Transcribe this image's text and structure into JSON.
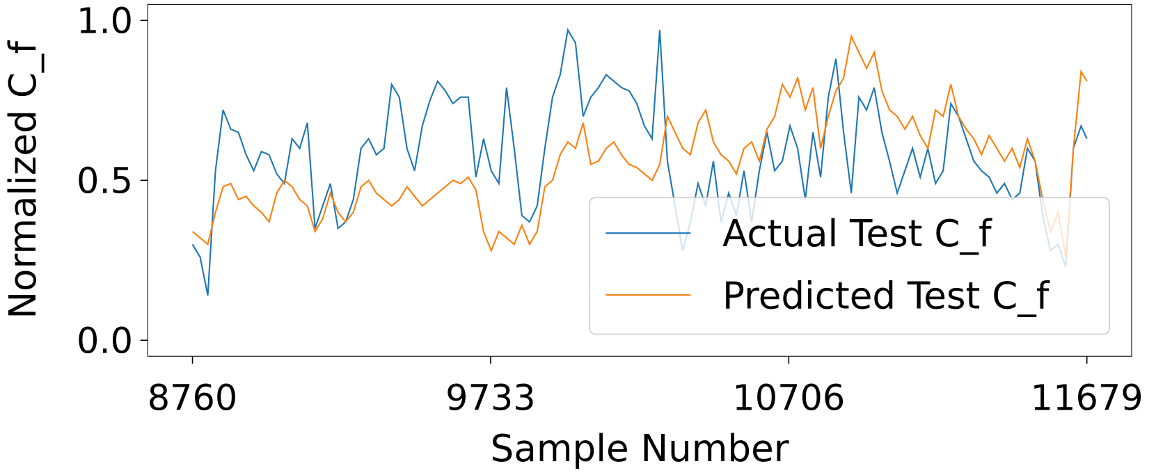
{
  "chart_data": {
    "type": "line",
    "xlabel": "Sample Number",
    "ylabel": "Normalized C_f",
    "x": [
      8760,
      8785,
      8810,
      8835,
      8860,
      8885,
      8910,
      8935,
      8960,
      8985,
      9010,
      9035,
      9060,
      9085,
      9110,
      9135,
      9160,
      9185,
      9210,
      9235,
      9260,
      9285,
      9310,
      9335,
      9360,
      9385,
      9410,
      9435,
      9460,
      9485,
      9510,
      9535,
      9560,
      9585,
      9610,
      9635,
      9660,
      9685,
      9710,
      9735,
      9760,
      9785,
      9810,
      9835,
      9860,
      9885,
      9910,
      9935,
      9960,
      9985,
      10010,
      10035,
      10060,
      10085,
      10110,
      10135,
      10160,
      10185,
      10210,
      10235,
      10260,
      10285,
      10310,
      10335,
      10360,
      10385,
      10410,
      10435,
      10460,
      10485,
      10510,
      10535,
      10560,
      10585,
      10610,
      10635,
      10660,
      10685,
      10710,
      10735,
      10760,
      10785,
      10810,
      10835,
      10860,
      10885,
      10910,
      10935,
      10960,
      10985,
      11010,
      11035,
      11060,
      11085,
      11110,
      11135,
      11160,
      11185,
      11210,
      11235,
      11260,
      11285,
      11310,
      11335,
      11360,
      11385,
      11410,
      11435,
      11460,
      11485,
      11510,
      11535,
      11560,
      11585,
      11610,
      11635,
      11660,
      11679
    ],
    "series": [
      {
        "name": "Actual Test C_f",
        "color": "#1f77b4",
        "values": [
          0.3,
          0.26,
          0.14,
          0.53,
          0.72,
          0.66,
          0.65,
          0.58,
          0.53,
          0.59,
          0.58,
          0.52,
          0.49,
          0.63,
          0.6,
          0.68,
          0.35,
          0.42,
          0.49,
          0.35,
          0.37,
          0.44,
          0.6,
          0.63,
          0.58,
          0.6,
          0.8,
          0.76,
          0.6,
          0.53,
          0.67,
          0.75,
          0.81,
          0.78,
          0.74,
          0.76,
          0.76,
          0.51,
          0.63,
          0.53,
          0.49,
          0.79,
          0.6,
          0.39,
          0.37,
          0.42,
          0.6,
          0.76,
          0.83,
          0.97,
          0.93,
          0.7,
          0.76,
          0.79,
          0.83,
          0.81,
          0.79,
          0.78,
          0.74,
          0.67,
          0.63,
          0.97,
          0.56,
          0.42,
          0.28,
          0.37,
          0.49,
          0.42,
          0.56,
          0.37,
          0.46,
          0.39,
          0.53,
          0.37,
          0.53,
          0.65,
          0.53,
          0.56,
          0.67,
          0.6,
          0.44,
          0.65,
          0.51,
          0.76,
          0.88,
          0.65,
          0.46,
          0.76,
          0.72,
          0.79,
          0.65,
          0.56,
          0.46,
          0.53,
          0.6,
          0.51,
          0.6,
          0.49,
          0.53,
          0.74,
          0.7,
          0.63,
          0.56,
          0.53,
          0.51,
          0.46,
          0.49,
          0.44,
          0.46,
          0.6,
          0.56,
          0.39,
          0.28,
          0.3,
          0.23,
          0.6,
          0.67,
          0.63
        ]
      },
      {
        "name": "Predicted Test C_f",
        "color": "#ff7f0e",
        "values": [
          0.34,
          0.32,
          0.3,
          0.4,
          0.48,
          0.49,
          0.44,
          0.45,
          0.42,
          0.4,
          0.37,
          0.46,
          0.5,
          0.48,
          0.44,
          0.42,
          0.34,
          0.38,
          0.46,
          0.4,
          0.37,
          0.4,
          0.48,
          0.5,
          0.46,
          0.44,
          0.42,
          0.44,
          0.48,
          0.45,
          0.42,
          0.44,
          0.46,
          0.48,
          0.5,
          0.49,
          0.51,
          0.47,
          0.34,
          0.28,
          0.34,
          0.32,
          0.3,
          0.36,
          0.3,
          0.34,
          0.48,
          0.5,
          0.58,
          0.62,
          0.6,
          0.68,
          0.55,
          0.56,
          0.6,
          0.62,
          0.58,
          0.55,
          0.54,
          0.52,
          0.5,
          0.55,
          0.7,
          0.65,
          0.6,
          0.58,
          0.68,
          0.72,
          0.62,
          0.58,
          0.56,
          0.52,
          0.6,
          0.62,
          0.56,
          0.66,
          0.7,
          0.8,
          0.76,
          0.82,
          0.72,
          0.79,
          0.6,
          0.7,
          0.78,
          0.82,
          0.95,
          0.9,
          0.85,
          0.9,
          0.78,
          0.72,
          0.7,
          0.66,
          0.7,
          0.64,
          0.6,
          0.72,
          0.7,
          0.8,
          0.7,
          0.66,
          0.63,
          0.58,
          0.64,
          0.6,
          0.56,
          0.6,
          0.54,
          0.63,
          0.56,
          0.44,
          0.34,
          0.4,
          0.26,
          0.6,
          0.84,
          0.81
        ]
      }
    ],
    "xlim": [
      8614,
      11825
    ],
    "ylim": [
      -0.05,
      1.05
    ],
    "xticks": [
      8760,
      9733,
      10706,
      11679
    ],
    "yticks": [
      {
        "value": 0,
        "label": "0.0"
      },
      0.5,
      {
        "value": 1,
        "label": "1.0"
      }
    ],
    "legend": "lower right"
  }
}
